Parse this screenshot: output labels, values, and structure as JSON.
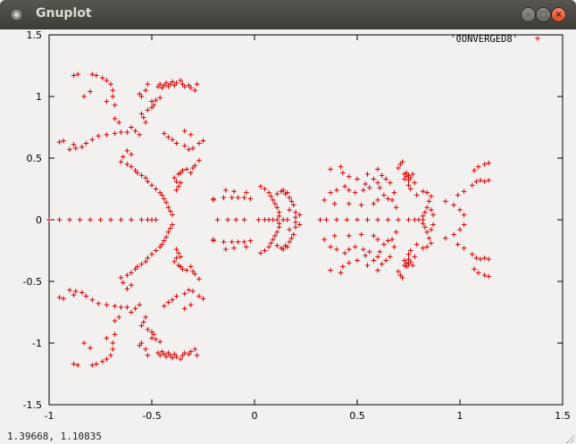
{
  "window": {
    "title": "Gnuplot",
    "buttons": {
      "minimize": "–",
      "maximize": "□",
      "close": "×"
    }
  },
  "statusbar": {
    "coordinates": "1.39668,  1.10835"
  },
  "colors": {
    "points": "#d40000",
    "axes": "#000000",
    "background": "#f2f1f0"
  },
  "chart_data": {
    "type": "scatter",
    "title": "",
    "xlabel": "",
    "ylabel": "",
    "xlim": [
      -1,
      1.5
    ],
    "ylim": [
      -1.5,
      1.5
    ],
    "xticks": [
      -1,
      -0.5,
      0,
      0.5,
      1,
      1.5
    ],
    "yticks": [
      -1.5,
      -1,
      -0.5,
      0,
      0.5,
      1,
      1.5
    ],
    "xtick_labels": [
      "-1",
      "-0.5",
      "0",
      "0.5",
      "1",
      "1.5"
    ],
    "ytick_labels": [
      "-1.5",
      "-1",
      "-0.5",
      "0",
      "0.5",
      "1",
      "1.5"
    ],
    "legend": {
      "entry": "'CONVERGED8'",
      "position": "top-right",
      "marker": "+"
    },
    "grid": false,
    "symmetry": "mirrored about y=0",
    "series": [
      {
        "name": "'CONVERGED8'",
        "marker": "+",
        "color": "#d40000",
        "points_upper_half": [
          [
            -1.0,
            0.0
          ],
          [
            -0.95,
            0.0
          ],
          [
            -0.9,
            0.0
          ],
          [
            -0.85,
            0.0
          ],
          [
            -0.8,
            0.0
          ],
          [
            -0.75,
            0.0
          ],
          [
            -0.7,
            0.0
          ],
          [
            -0.65,
            0.0
          ],
          [
            -0.6,
            0.0
          ],
          [
            -0.55,
            0.0
          ],
          [
            -0.52,
            0.0
          ],
          [
            -0.5,
            0.0
          ],
          [
            -0.48,
            0.0
          ],
          [
            -0.88,
            1.17
          ],
          [
            -0.86,
            1.18
          ],
          [
            -0.79,
            1.18
          ],
          [
            -0.77,
            1.17
          ],
          [
            -0.74,
            1.15
          ],
          [
            -0.72,
            1.13
          ],
          [
            -0.7,
            1.1
          ],
          [
            -0.69,
            1.05
          ],
          [
            -0.69,
            1.0
          ],
          [
            -0.72,
            0.96
          ],
          [
            -0.68,
            0.93
          ],
          [
            -0.8,
            1.04
          ],
          [
            -0.83,
            1.0
          ],
          [
            -0.68,
            0.82
          ],
          [
            -0.66,
            0.79
          ],
          [
            -0.6,
            0.75
          ],
          [
            -0.62,
            0.71
          ],
          [
            -0.65,
            0.71
          ],
          [
            -0.68,
            0.7
          ],
          [
            -0.72,
            0.69
          ],
          [
            -0.76,
            0.68
          ],
          [
            -0.79,
            0.65
          ],
          [
            -0.82,
            0.62
          ],
          [
            -0.84,
            0.59
          ],
          [
            -0.87,
            0.58
          ],
          [
            -0.9,
            0.57
          ],
          [
            -0.88,
            0.61
          ],
          [
            -0.95,
            0.63
          ],
          [
            -0.93,
            0.64
          ],
          [
            -0.58,
            0.72
          ],
          [
            -0.56,
            0.69
          ],
          [
            -0.53,
            0.79
          ],
          [
            -0.54,
            0.83
          ],
          [
            -0.55,
            0.86
          ],
          [
            -0.52,
            0.89
          ],
          [
            -0.5,
            0.91
          ],
          [
            -0.49,
            0.93
          ],
          [
            -0.5,
            0.96
          ],
          [
            -0.48,
            0.97
          ],
          [
            -0.46,
            0.99
          ],
          [
            -0.55,
            1.0
          ],
          [
            -0.56,
            1.02
          ],
          [
            -0.53,
            1.05
          ],
          [
            -0.52,
            1.1
          ],
          [
            -0.47,
            1.08
          ],
          [
            -0.46,
            1.1
          ],
          [
            -0.45,
            1.07
          ],
          [
            -0.44,
            1.09
          ],
          [
            -0.43,
            1.11
          ],
          [
            -0.42,
            1.08
          ],
          [
            -0.41,
            1.1
          ],
          [
            -0.4,
            1.12
          ],
          [
            -0.39,
            1.09
          ],
          [
            -0.38,
            1.11
          ],
          [
            -0.36,
            1.13
          ],
          [
            -0.35,
            1.1
          ],
          [
            -0.34,
            1.08
          ],
          [
            -0.32,
            1.09
          ],
          [
            -0.31,
            1.07
          ],
          [
            -0.29,
            1.05
          ],
          [
            -0.28,
            1.1
          ],
          [
            -0.6,
            0.53
          ],
          [
            -0.62,
            0.56
          ],
          [
            -0.64,
            0.51
          ],
          [
            -0.65,
            0.47
          ],
          [
            -0.62,
            0.45
          ],
          [
            -0.6,
            0.43
          ],
          [
            -0.58,
            0.4
          ],
          [
            -0.57,
            0.38
          ],
          [
            -0.55,
            0.36
          ],
          [
            -0.53,
            0.34
          ],
          [
            -0.52,
            0.31
          ],
          [
            -0.5,
            0.28
          ],
          [
            -0.48,
            0.25
          ],
          [
            -0.46,
            0.22
          ],
          [
            -0.45,
            0.2
          ],
          [
            -0.44,
            0.17
          ],
          [
            -0.43,
            0.14
          ],
          [
            -0.42,
            0.1
          ],
          [
            -0.41,
            0.07
          ],
          [
            -0.4,
            0.04
          ],
          [
            -0.38,
            0.24
          ],
          [
            -0.37,
            0.27
          ],
          [
            -0.36,
            0.3
          ],
          [
            -0.38,
            0.31
          ],
          [
            -0.39,
            0.34
          ],
          [
            -0.37,
            0.37
          ],
          [
            -0.36,
            0.38
          ],
          [
            -0.35,
            0.4
          ],
          [
            -0.33,
            0.41
          ],
          [
            -0.31,
            0.38
          ],
          [
            -0.3,
            0.42
          ],
          [
            -0.29,
            0.44
          ],
          [
            -0.42,
            0.67
          ],
          [
            -0.44,
            0.7
          ],
          [
            -0.4,
            0.65
          ],
          [
            -0.38,
            0.62
          ],
          [
            -0.34,
            0.6
          ],
          [
            -0.32,
            0.57
          ],
          [
            -0.3,
            0.58
          ],
          [
            -0.27,
            0.62
          ],
          [
            -0.25,
            0.64
          ],
          [
            -0.31,
            0.69
          ],
          [
            -0.34,
            0.72
          ],
          [
            -0.27,
            0.48
          ],
          [
            -0.2,
            0.17
          ],
          [
            -0.15,
            0.18
          ],
          [
            -0.11,
            0.18
          ],
          [
            -0.08,
            0.18
          ],
          [
            -0.05,
            0.18
          ],
          [
            -0.02,
            0.17
          ],
          [
            -0.04,
            0.22
          ],
          [
            -0.1,
            0.23
          ],
          [
            -0.14,
            0.24
          ],
          [
            -0.2,
            0.16
          ],
          [
            -0.18,
            0.0
          ],
          [
            -0.13,
            0.0
          ],
          [
            -0.09,
            0.0
          ],
          [
            -0.05,
            0.0
          ],
          [
            0.02,
            0.0
          ],
          [
            0.05,
            0.0
          ],
          [
            0.07,
            0.0
          ],
          [
            0.09,
            0.0
          ],
          [
            0.11,
            0.0
          ],
          [
            0.14,
            0.0
          ],
          [
            0.16,
            0.0
          ],
          [
            0.03,
            0.27
          ],
          [
            0.05,
            0.25
          ],
          [
            0.07,
            0.22
          ],
          [
            0.08,
            0.19
          ],
          [
            0.09,
            0.16
          ],
          [
            0.1,
            0.13
          ],
          [
            0.11,
            0.1
          ],
          [
            0.12,
            0.06
          ],
          [
            0.12,
            0.03
          ],
          [
            0.11,
            0.21
          ],
          [
            0.13,
            0.23
          ],
          [
            0.14,
            0.24
          ],
          [
            0.15,
            0.21
          ],
          [
            0.16,
            0.22
          ],
          [
            0.17,
            0.18
          ],
          [
            0.18,
            0.15
          ],
          [
            0.19,
            0.12
          ],
          [
            0.17,
            0.08
          ],
          [
            0.2,
            0.06
          ],
          [
            0.22,
            0.04
          ],
          [
            0.2,
            0.02
          ],
          [
            0.32,
            0.0
          ],
          [
            0.35,
            0.0
          ],
          [
            0.4,
            0.0
          ],
          [
            0.45,
            0.0
          ],
          [
            0.5,
            0.0
          ],
          [
            0.55,
            0.0
          ],
          [
            0.6,
            0.0
          ],
          [
            0.65,
            0.0
          ],
          [
            0.7,
            0.0
          ],
          [
            0.75,
            0.0
          ],
          [
            0.78,
            0.0
          ],
          [
            0.8,
            0.0
          ],
          [
            0.82,
            0.0
          ],
          [
            0.37,
            0.41
          ],
          [
            0.42,
            0.43
          ],
          [
            0.43,
            0.38
          ],
          [
            0.46,
            0.35
          ],
          [
            0.5,
            0.33
          ],
          [
            0.54,
            0.29
          ],
          [
            0.56,
            0.26
          ],
          [
            0.53,
            0.24
          ],
          [
            0.49,
            0.22
          ],
          [
            0.46,
            0.24
          ],
          [
            0.44,
            0.27
          ],
          [
            0.4,
            0.24
          ],
          [
            0.37,
            0.22
          ],
          [
            0.34,
            0.16
          ],
          [
            0.39,
            0.13
          ],
          [
            0.46,
            0.13
          ],
          [
            0.52,
            0.12
          ],
          [
            0.58,
            0.13
          ],
          [
            0.6,
            0.16
          ],
          [
            0.55,
            0.37
          ],
          [
            0.58,
            0.33
          ],
          [
            0.6,
            0.3
          ],
          [
            0.61,
            0.26
          ],
          [
            0.63,
            0.2
          ],
          [
            0.65,
            0.17
          ],
          [
            0.67,
            0.16
          ],
          [
            0.7,
            0.42
          ],
          [
            0.71,
            0.45
          ],
          [
            0.72,
            0.47
          ],
          [
            0.73,
            0.37
          ],
          [
            0.74,
            0.35
          ],
          [
            0.75,
            0.36
          ],
          [
            0.76,
            0.34
          ],
          [
            0.73,
            0.33
          ],
          [
            0.74,
            0.38
          ],
          [
            0.75,
            0.32
          ],
          [
            0.77,
            0.37
          ],
          [
            0.78,
            0.3
          ],
          [
            0.75,
            0.28
          ],
          [
            0.76,
            0.25
          ],
          [
            0.79,
            0.2
          ],
          [
            0.82,
            0.23
          ],
          [
            0.84,
            0.22
          ],
          [
            0.86,
            0.19
          ],
          [
            0.85,
            0.15
          ],
          [
            0.84,
            0.1
          ],
          [
            0.83,
            0.06
          ],
          [
            0.82,
            0.03
          ],
          [
            0.86,
            0.08
          ],
          [
            0.87,
            0.04
          ],
          [
            0.93,
            0.15
          ],
          [
            0.97,
            0.12
          ],
          [
            1.0,
            0.08
          ],
          [
            1.02,
            0.04
          ],
          [
            0.99,
            0.2
          ],
          [
            1.02,
            0.23
          ],
          [
            1.06,
            0.28
          ],
          [
            1.08,
            0.31
          ],
          [
            1.1,
            0.32
          ],
          [
            1.12,
            0.31
          ],
          [
            1.14,
            0.32
          ],
          [
            1.07,
            0.4
          ],
          [
            1.09,
            0.43
          ],
          [
            1.12,
            0.45
          ],
          [
            1.14,
            0.46
          ],
          [
            0.6,
            0.41
          ],
          [
            0.62,
            0.36
          ],
          [
            0.64,
            0.33
          ],
          [
            0.66,
            0.3
          ],
          [
            0.68,
            0.22
          ],
          [
            0.69,
            0.1
          ]
        ]
      }
    ]
  }
}
